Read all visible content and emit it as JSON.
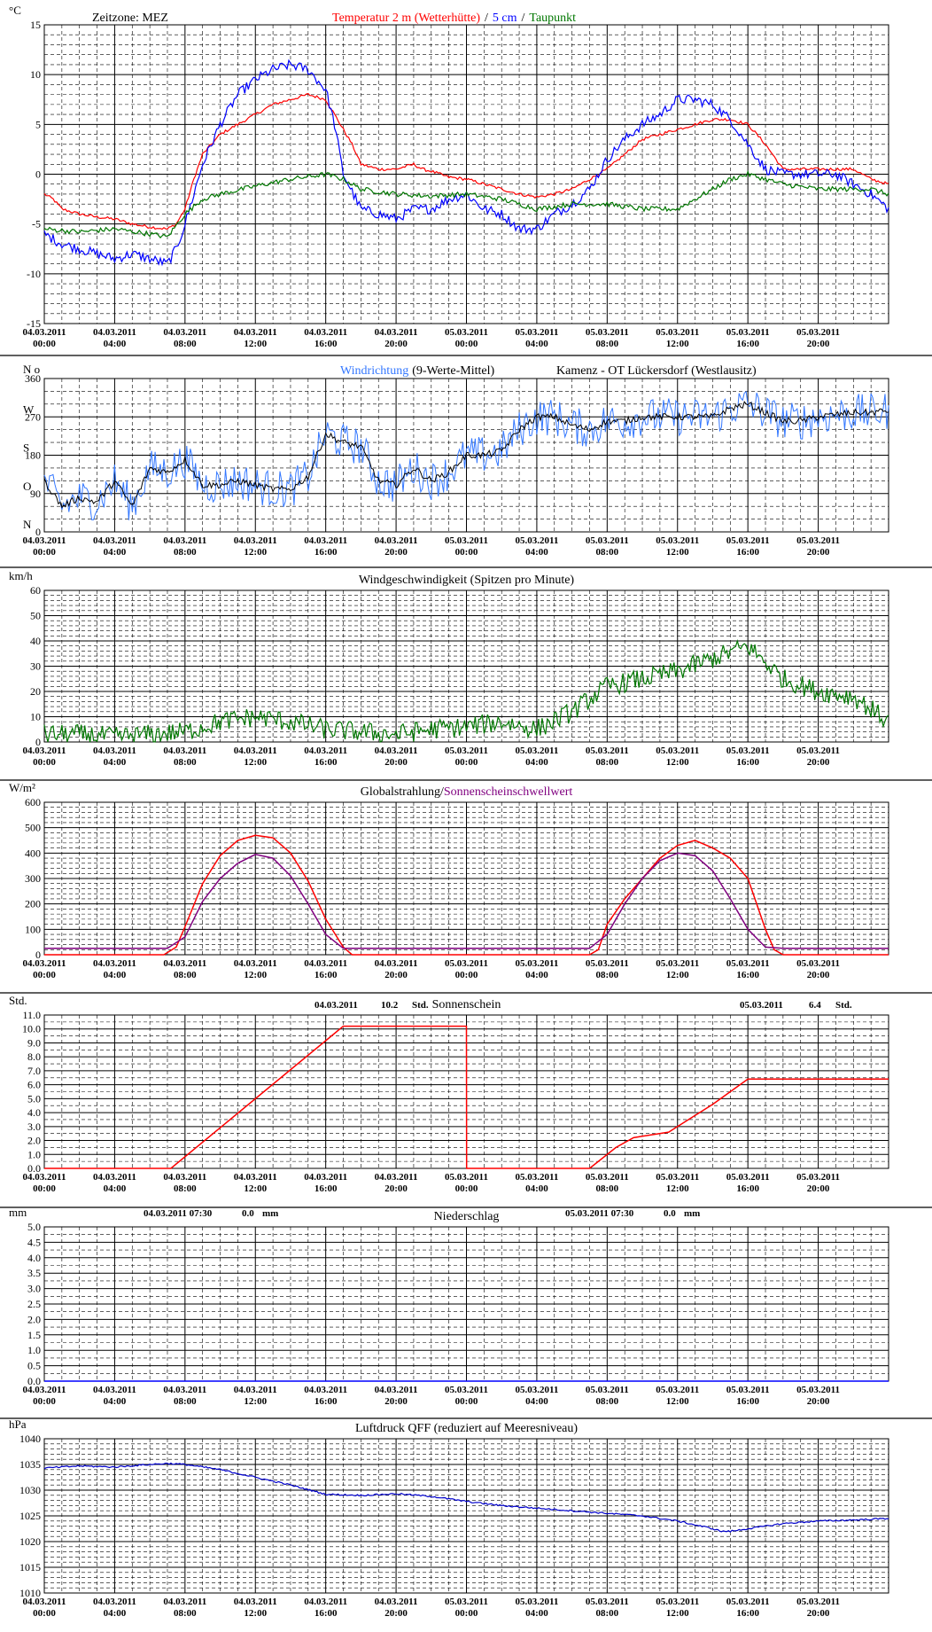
{
  "x_ticks": [
    {
      "date": "04.03.2011",
      "time": "00:00"
    },
    {
      "date": "04.03.2011",
      "time": "04:00"
    },
    {
      "date": "04.03.2011",
      "time": "08:00"
    },
    {
      "date": "04.03.2011",
      "time": "12:00"
    },
    {
      "date": "04.03.2011",
      "time": "16:00"
    },
    {
      "date": "04.03.2011",
      "time": "20:00"
    },
    {
      "date": "05.03.2011",
      "time": "00:00"
    },
    {
      "date": "05.03.2011",
      "time": "04:00"
    },
    {
      "date": "05.03.2011",
      "time": "08:00"
    },
    {
      "date": "05.03.2011",
      "time": "12:00"
    },
    {
      "date": "05.03.2011",
      "time": "16:00"
    },
    {
      "date": "05.03.2011",
      "time": "20:00"
    }
  ],
  "colors": {
    "red": "#ff0000",
    "blue": "#0000ff",
    "green": "#007700",
    "dark_blue": "#0000cc",
    "purple": "#800080",
    "black": "#000000",
    "light_blue": "#3377ff"
  },
  "chart_data": [
    {
      "id": "temperature",
      "type": "line",
      "title": [
        {
          "text": "Zeitzone: MEZ",
          "color": "#000000"
        },
        {
          "text": "Temperatur 2 m (Wetterhütte)",
          "color": "#ff0000"
        },
        {
          "text": "/",
          "color": "#000000"
        },
        {
          "text": "5 cm",
          "color": "#0000ff"
        },
        {
          "text": "/",
          "color": "#000000"
        },
        {
          "text": "Taupunkt",
          "color": "#007700"
        }
      ],
      "ylabel": "°C",
      "ylim": [
        -15,
        15
      ],
      "yticks": [
        "15",
        "10",
        "5",
        "0",
        "-5",
        "-10",
        "-15"
      ],
      "xlim": [
        0,
        48
      ],
      "series": [
        {
          "name": "Temperatur 2 m (Wetterhütte)",
          "color": "#ff0000",
          "noise": 0.15,
          "x": [
            0,
            0.5,
            1,
            2,
            3,
            4,
            5,
            6,
            7,
            7.5,
            8,
            8.5,
            9,
            10,
            11,
            12,
            13,
            14,
            15,
            16,
            17,
            17.5,
            18,
            19,
            20,
            21,
            21.5,
            22,
            23,
            24,
            25,
            26,
            27,
            28,
            29,
            30,
            31,
            32,
            33,
            34,
            35,
            36,
            37,
            38,
            39,
            40,
            41,
            42,
            43,
            44,
            45,
            46,
            47,
            48
          ],
          "y": [
            -2.0,
            -2.5,
            -3.5,
            -4.0,
            -4.3,
            -4.5,
            -5.0,
            -5.3,
            -5.5,
            -5.0,
            -3.5,
            -0.5,
            2.0,
            4.0,
            5.0,
            6.0,
            7.0,
            7.5,
            8.0,
            7.5,
            4.5,
            3.0,
            1.0,
            0.5,
            0.5,
            1.0,
            0.5,
            0.3,
            -0.3,
            -0.5,
            -1.0,
            -1.5,
            -2.0,
            -2.3,
            -2.0,
            -1.5,
            -0.5,
            0.5,
            2.0,
            3.5,
            4.0,
            4.5,
            5.0,
            5.5,
            5.5,
            5.0,
            3.0,
            0.5,
            0.5,
            0.5,
            0.5,
            0.5,
            -0.5,
            -1.0
          ]
        },
        {
          "name": "5 cm",
          "color": "#0000ff",
          "noise": 0.5,
          "x": [
            0,
            1,
            2,
            3,
            4,
            5,
            6,
            7,
            7.5,
            8,
            8.5,
            9,
            10,
            11,
            12,
            13,
            14,
            15,
            16,
            16.5,
            17,
            18,
            19,
            20,
            21,
            22,
            23,
            24,
            25,
            26,
            27,
            28,
            29,
            30,
            31,
            31.5,
            32,
            33,
            34,
            35,
            36,
            37,
            38,
            39,
            40,
            41,
            42,
            43,
            44,
            45,
            46,
            47,
            48
          ],
          "y": [
            -6.0,
            -7.0,
            -7.5,
            -8.0,
            -8.5,
            -8.0,
            -8.5,
            -9.0,
            -7.5,
            -5.0,
            -2.0,
            1.0,
            5.0,
            8.0,
            9.5,
            10.5,
            11.0,
            10.5,
            8.5,
            5.0,
            0.0,
            -3.5,
            -4.0,
            -4.5,
            -3.5,
            -3.5,
            -2.5,
            -2.0,
            -3.5,
            -4.0,
            -5.5,
            -5.5,
            -4.0,
            -3.0,
            -1.5,
            0.0,
            1.5,
            3.5,
            5.0,
            6.0,
            7.5,
            7.5,
            7.0,
            5.5,
            3.0,
            0.5,
            0.0,
            0.0,
            0.0,
            0.0,
            -1.0,
            -2.0,
            -3.5
          ]
        },
        {
          "name": "Taupunkt",
          "color": "#007700",
          "noise": 0.25,
          "x": [
            0,
            2,
            4,
            6,
            7,
            8,
            9,
            10,
            12,
            14,
            16,
            17,
            18,
            20,
            22,
            24,
            26,
            28,
            30,
            32,
            34,
            36,
            38,
            39,
            40,
            41,
            42,
            44,
            46,
            47,
            48
          ],
          "y": [
            -5.5,
            -5.8,
            -5.5,
            -6.0,
            -6.3,
            -4.0,
            -2.5,
            -2.0,
            -1.2,
            -0.5,
            0.0,
            -0.5,
            -1.5,
            -2.0,
            -2.2,
            -2.0,
            -2.5,
            -3.5,
            -3.0,
            -3.0,
            -3.5,
            -3.5,
            -1.5,
            -0.5,
            0.0,
            -0.5,
            -1.0,
            -1.5,
            -1.5,
            -1.5,
            -2.0
          ]
        }
      ]
    },
    {
      "id": "wind-direction",
      "type": "scatter",
      "title": [
        {
          "text": "Windrichtung",
          "color": "#3377ff"
        },
        {
          "text": "(9-Werte-Mittel)",
          "color": "#000000"
        },
        {
          "text": "Kamenz - OT Lückersdorf (Westlausitz)",
          "color": "#000000"
        }
      ],
      "ylabel": "N",
      "ylim": [
        0,
        360
      ],
      "yticks": [
        "360",
        "270",
        "180",
        "90",
        "0"
      ],
      "compass": [
        "N",
        "W",
        "S",
        "O",
        "N"
      ],
      "xlim": [
        0,
        48
      ],
      "series": [
        {
          "name": "Windrichtung",
          "color": "#3377ff",
          "noise": 45,
          "x": [
            0,
            1,
            2,
            3,
            4,
            5,
            6,
            7,
            8,
            9,
            10,
            11,
            12,
            13,
            14,
            15,
            16,
            17,
            18,
            19,
            20,
            21,
            22,
            23,
            24,
            25,
            26,
            27,
            28,
            29,
            30,
            31,
            32,
            33,
            34,
            35,
            36,
            37,
            38,
            39,
            40,
            41,
            42,
            43,
            44,
            45,
            46,
            47,
            48
          ],
          "y": [
            120,
            60,
            80,
            70,
            120,
            60,
            150,
            140,
            170,
            110,
            110,
            120,
            110,
            100,
            100,
            130,
            230,
            210,
            200,
            120,
            110,
            150,
            120,
            140,
            180,
            180,
            190,
            240,
            270,
            270,
            250,
            240,
            260,
            260,
            270,
            270,
            270,
            270,
            270,
            290,
            300,
            280,
            260,
            260,
            270,
            275,
            280,
            280,
            285
          ]
        },
        {
          "name": "9-Werte-Mittel",
          "color": "#000000",
          "noise": 8,
          "x": [
            0,
            1,
            2,
            3,
            4,
            5,
            6,
            7,
            8,
            9,
            10,
            11,
            12,
            13,
            14,
            15,
            16,
            17,
            18,
            19,
            20,
            21,
            22,
            23,
            24,
            25,
            26,
            27,
            28,
            29,
            30,
            31,
            32,
            33,
            34,
            35,
            36,
            37,
            38,
            39,
            40,
            41,
            42,
            43,
            44,
            45,
            46,
            47,
            48
          ],
          "y": [
            120,
            60,
            80,
            70,
            120,
            60,
            150,
            140,
            170,
            110,
            110,
            120,
            110,
            100,
            100,
            130,
            230,
            210,
            200,
            120,
            110,
            150,
            120,
            140,
            180,
            180,
            190,
            240,
            270,
            270,
            250,
            240,
            260,
            260,
            270,
            270,
            270,
            270,
            270,
            290,
            300,
            280,
            260,
            260,
            270,
            275,
            280,
            280,
            285
          ]
        }
      ]
    },
    {
      "id": "wind-speed",
      "type": "line",
      "title": [
        {
          "text": "Windgeschwindigkeit (Spitzen pro Minute)",
          "color": "#000000"
        }
      ],
      "ylabel": "km/h",
      "ylim": [
        0,
        60
      ],
      "yticks": [
        "60",
        "50",
        "40",
        "30",
        "20",
        "10",
        "0"
      ],
      "xlim": [
        0,
        48
      ],
      "series": [
        {
          "name": "Windgeschwindigkeit",
          "color": "#007700",
          "noise": 4,
          "x": [
            0,
            2,
            4,
            6,
            8,
            10,
            12,
            14,
            16,
            18,
            20,
            22,
            24,
            26,
            28,
            30,
            32,
            34,
            36,
            38,
            40,
            42,
            44,
            46,
            48
          ],
          "y": [
            3,
            3,
            2,
            3,
            4,
            8,
            10,
            8,
            5,
            4,
            3,
            5,
            6,
            8,
            5,
            12,
            22,
            25,
            28,
            33,
            38,
            25,
            20,
            18,
            8
          ]
        }
      ]
    },
    {
      "id": "global-radiation",
      "type": "line",
      "title": [
        {
          "text": "Globalstrahlung/",
          "color": "#000000"
        },
        {
          "text": "Sonnenscheinschwellwert",
          "color": "#800080"
        }
      ],
      "ylabel": "W/m²",
      "ylim": [
        0,
        600
      ],
      "yticks": [
        "600",
        "500",
        "400",
        "300",
        "200",
        "100",
        "0"
      ],
      "xlim": [
        0,
        48
      ],
      "series": [
        {
          "name": "Globalstrahlung",
          "color": "#ff0000",
          "noise": 0,
          "x": [
            0,
            6.8,
            7.5,
            8,
            9,
            10,
            11,
            12,
            13,
            14,
            15,
            16,
            17,
            17.5,
            18,
            31,
            31.5,
            32,
            33,
            34,
            35,
            36,
            37,
            38,
            39,
            40,
            41,
            41.5,
            42,
            48
          ],
          "y": [
            0,
            0,
            30,
            110,
            280,
            390,
            450,
            470,
            460,
            400,
            290,
            140,
            30,
            0,
            0,
            0,
            20,
            120,
            220,
            300,
            380,
            430,
            450,
            420,
            380,
            300,
            100,
            20,
            0,
            0
          ]
        },
        {
          "name": "Sonnenscheinschwellwert",
          "color": "#800080",
          "noise": 0,
          "x": [
            0,
            7,
            8,
            9,
            10,
            11,
            12,
            13,
            14,
            15,
            16,
            17,
            18,
            31,
            32,
            33,
            34,
            35,
            36,
            37,
            38,
            39,
            40,
            41,
            42,
            48
          ],
          "y": [
            25,
            25,
            70,
            210,
            300,
            360,
            395,
            380,
            310,
            200,
            80,
            25,
            25,
            25,
            80,
            200,
            300,
            370,
            400,
            390,
            330,
            220,
            100,
            30,
            25,
            25
          ]
        }
      ]
    },
    {
      "id": "sunshine",
      "type": "line",
      "title": [
        {
          "text": "Sonnenschein",
          "color": "#000000"
        }
      ],
      "annotations": [
        {
          "date": "04.03.2011",
          "value": "10.2",
          "unit": "Std."
        },
        {
          "date": "05.03.2011",
          "value": "6.4",
          "unit": "Std."
        }
      ],
      "ylabel": "Std.",
      "ylim": [
        0,
        11
      ],
      "yticks": [
        "11.0",
        "10.0",
        "9.0",
        "8.0",
        "7.0",
        "6.0",
        "5.0",
        "4.0",
        "3.0",
        "2.0",
        "1.0",
        "0.0"
      ],
      "xlim": [
        0,
        48
      ],
      "series": [
        {
          "name": "Sonnenschein",
          "color": "#ff0000",
          "noise": 0,
          "x": [
            0,
            7.2,
            17,
            24,
            24.01,
            31,
            32.5,
            33.5,
            34,
            35.5,
            36.5,
            38,
            39,
            40,
            48
          ],
          "y": [
            0,
            0,
            10.2,
            10.2,
            0,
            0,
            1.5,
            2.2,
            2.3,
            2.6,
            3.4,
            4.6,
            5.5,
            6.4,
            6.4
          ]
        }
      ]
    },
    {
      "id": "precipitation",
      "type": "line",
      "title": [
        {
          "text": "Niederschlag",
          "color": "#000000"
        }
      ],
      "annotations": [
        {
          "date": "04.03.2011 07:30",
          "value": "0.0",
          "unit": "mm"
        },
        {
          "date": "05.03.2011 07:30",
          "value": "0.0",
          "unit": "mm"
        }
      ],
      "ylabel": "mm",
      "ylim": [
        0,
        5
      ],
      "yticks": [
        "5.0",
        "4.5",
        "4.0",
        "3.5",
        "3.0",
        "2.5",
        "2.0",
        "1.5",
        "1.0",
        "0.5",
        "0.0"
      ],
      "xlim": [
        0,
        48
      ],
      "series": [
        {
          "name": "Niederschlag",
          "color": "#0000ff",
          "noise": 0,
          "x": [
            0,
            48
          ],
          "y": [
            0,
            0
          ]
        }
      ]
    },
    {
      "id": "air-pressure",
      "type": "line",
      "title": [
        {
          "text": "Luftdruck QFF (reduziert auf Meeresniveau)",
          "color": "#000000"
        }
      ],
      "ylabel": "hPa",
      "ylim": [
        1010,
        1040
      ],
      "yticks": [
        "1040",
        "1035",
        "1030",
        "1025",
        "1020",
        "1015",
        "1010"
      ],
      "xlim": [
        0,
        48
      ],
      "series": [
        {
          "name": "Luftdruck QFF",
          "color": "#0000cc",
          "noise": 0.15,
          "x": [
            0,
            2,
            4,
            6,
            7,
            8,
            10,
            12,
            14,
            16,
            18,
            20,
            22,
            24,
            26,
            28,
            30,
            32,
            34,
            36,
            38,
            38.5,
            39,
            40,
            42,
            44,
            46,
            48
          ],
          "y": [
            1034.3,
            1034.7,
            1034.5,
            1035.0,
            1035.2,
            1035.0,
            1034.0,
            1032.5,
            1031.0,
            1029.2,
            1029.0,
            1029.3,
            1028.8,
            1027.8,
            1027.0,
            1026.5,
            1026.0,
            1025.5,
            1025.0,
            1024.0,
            1022.5,
            1022.0,
            1022.0,
            1022.5,
            1023.5,
            1024.0,
            1024.2,
            1024.5
          ]
        }
      ]
    }
  ]
}
